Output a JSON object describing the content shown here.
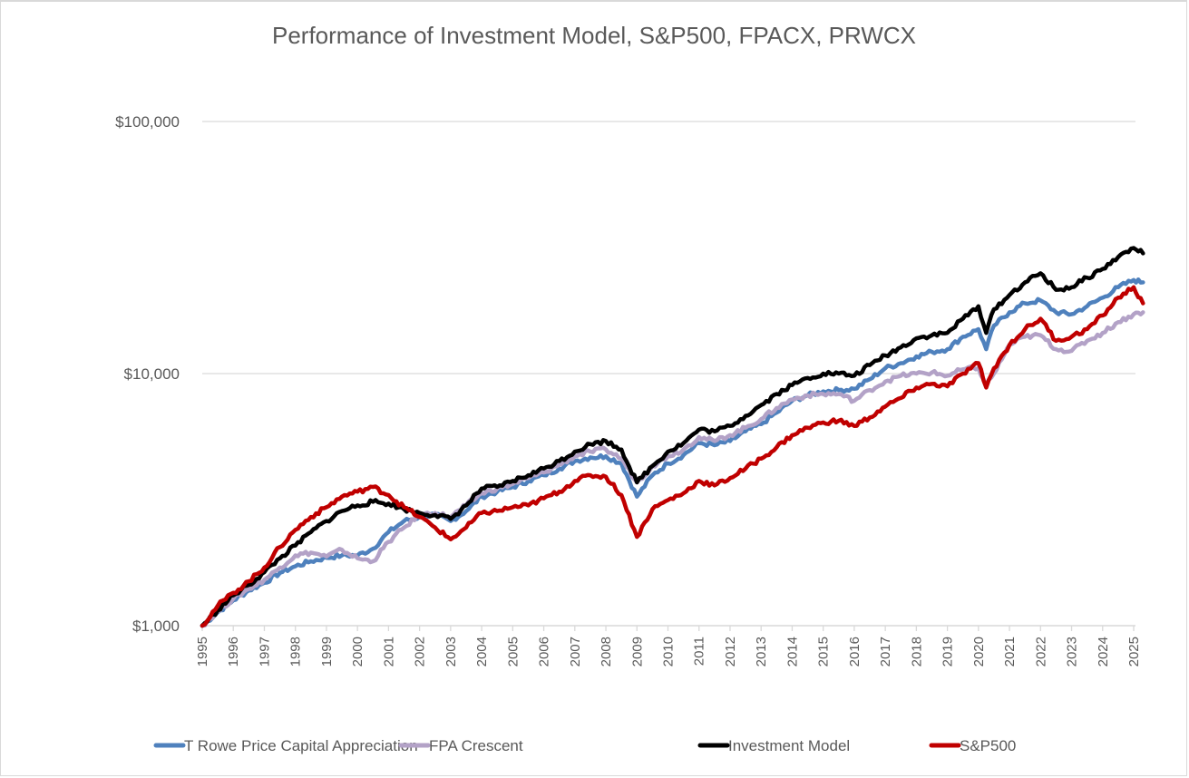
{
  "chart_data": {
    "type": "line",
    "title": "Performance of Investment Model, S&P500, FPACX, PRWCX",
    "xlabel": "",
    "ylabel": "",
    "yscale": "log",
    "ylim": [
      1000,
      100000
    ],
    "xlim": [
      1995,
      2025.3
    ],
    "grid": true,
    "legend_position": "bottom",
    "y_ticks": [
      {
        "value": 1000,
        "label": "$1,000"
      },
      {
        "value": 10000,
        "label": "$10,000"
      },
      {
        "value": 100000,
        "label": "$100,000"
      }
    ],
    "x_ticks": [
      "1995",
      "1996",
      "1997",
      "1998",
      "1999",
      "2000",
      "2001",
      "2002",
      "2003",
      "2004",
      "2005",
      "2006",
      "2007",
      "2008",
      "2009",
      "2010",
      "2011",
      "2012",
      "2013",
      "2014",
      "2015",
      "2016",
      "2017",
      "2018",
      "2019",
      "2020",
      "2021",
      "2022",
      "2023",
      "2024",
      "2025"
    ],
    "x": [
      1995.0,
      1995.5,
      1996.0,
      1996.5,
      1997.0,
      1997.5,
      1998.0,
      1998.5,
      1999.0,
      1999.5,
      2000.0,
      2000.5,
      2001.0,
      2001.5,
      2002.0,
      2002.5,
      2003.0,
      2003.5,
      2004.0,
      2004.5,
      2005.0,
      2005.5,
      2006.0,
      2006.5,
      2007.0,
      2007.5,
      2008.0,
      2008.5,
      2009.0,
      2009.5,
      2010.0,
      2010.5,
      2011.0,
      2011.5,
      2012.0,
      2012.5,
      2013.0,
      2013.5,
      2014.0,
      2014.5,
      2015.0,
      2015.5,
      2016.0,
      2016.5,
      2017.0,
      2017.5,
      2018.0,
      2018.5,
      2019.0,
      2019.5,
      2020.0,
      2020.25,
      2020.5,
      2021.0,
      2021.5,
      2022.0,
      2022.5,
      2023.0,
      2023.5,
      2024.0,
      2024.5,
      2025.0,
      2025.3
    ],
    "series": [
      {
        "name": "T Rowe Price Capital Appreciation",
        "color": "#4f81bd",
        "values": [
          1000,
          1130,
          1260,
          1380,
          1480,
          1620,
          1720,
          1800,
          1860,
          1900,
          1900,
          2020,
          2350,
          2600,
          2700,
          2750,
          2600,
          2850,
          3250,
          3400,
          3550,
          3750,
          3950,
          4200,
          4500,
          4650,
          4700,
          4400,
          3250,
          3950,
          4400,
          4750,
          5300,
          5200,
          5400,
          5900,
          6300,
          7000,
          7800,
          8200,
          8500,
          8600,
          8700,
          9500,
          10500,
          11000,
          11700,
          12200,
          12500,
          14000,
          15000,
          12500,
          15500,
          17500,
          19000,
          19500,
          17500,
          17200,
          18500,
          20000,
          22000,
          23500,
          23000
        ]
      },
      {
        "name": "FPA Crescent",
        "color": "#b3a2c7",
        "values": [
          1000,
          1140,
          1280,
          1400,
          1520,
          1700,
          1900,
          1950,
          1880,
          2000,
          1850,
          1800,
          2150,
          2450,
          2750,
          2800,
          2700,
          3000,
          3350,
          3500,
          3650,
          3850,
          4050,
          4350,
          4700,
          4900,
          5000,
          4600,
          3700,
          4300,
          4700,
          5000,
          5600,
          5400,
          5700,
          6100,
          6600,
          7300,
          7900,
          8200,
          8300,
          8300,
          7800,
          8600,
          9300,
          9800,
          10000,
          10100,
          9800,
          10400,
          10500,
          9000,
          10000,
          13000,
          14000,
          14200,
          12500,
          12300,
          13500,
          14500,
          16000,
          17200,
          17500
        ]
      },
      {
        "name": "Investment Model",
        "color": "#000000",
        "values": [
          1000,
          1150,
          1320,
          1450,
          1630,
          1850,
          2080,
          2350,
          2600,
          2850,
          3000,
          3100,
          3050,
          2900,
          2800,
          2750,
          2650,
          3000,
          3500,
          3550,
          3750,
          3950,
          4200,
          4500,
          4900,
          5250,
          5400,
          5000,
          3700,
          4300,
          4900,
          5300,
          6000,
          5900,
          6200,
          6800,
          7500,
          8300,
          9000,
          9600,
          10000,
          10000,
          9800,
          10800,
          11800,
          12700,
          13800,
          14200,
          14500,
          16500,
          18500,
          14500,
          18000,
          20500,
          23000,
          25000,
          21500,
          22000,
          24000,
          26000,
          29000,
          31500,
          30000
        ]
      },
      {
        "name": "S&P500",
        "color": "#c00000",
        "values": [
          1000,
          1200,
          1350,
          1500,
          1700,
          2050,
          2400,
          2700,
          2950,
          3250,
          3400,
          3550,
          3300,
          2950,
          2700,
          2450,
          2200,
          2450,
          2800,
          2850,
          2950,
          3000,
          3200,
          3400,
          3750,
          3950,
          3900,
          3300,
          2250,
          2900,
          3150,
          3350,
          3750,
          3600,
          3850,
          4200,
          4600,
          5100,
          5700,
          6100,
          6400,
          6500,
          6200,
          6700,
          7400,
          8000,
          8800,
          9100,
          8900,
          10000,
          11000,
          8800,
          10500,
          13000,
          15000,
          16500,
          13500,
          14000,
          15000,
          17000,
          20000,
          22000,
          19000
        ]
      }
    ]
  }
}
